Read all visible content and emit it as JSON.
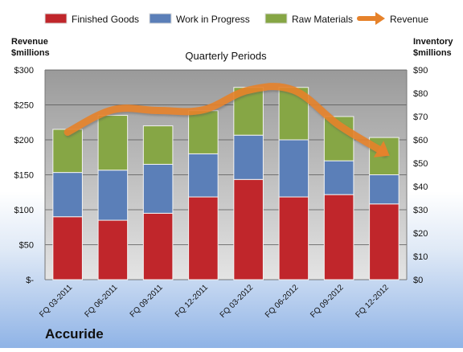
{
  "company": "Accuride",
  "chart_data": {
    "type": "bar",
    "subtitle": "Quarterly Periods",
    "categories": [
      "FQ 03-2011",
      "FQ 06-2011",
      "FQ 09-2011",
      "FQ 12-2011",
      "FQ 03-2012",
      "FQ 06-2012",
      "FQ 09-2012",
      "FQ 12-2012"
    ],
    "stacked": true,
    "series": [
      {
        "name": "Finished Goods",
        "axis": "right",
        "color": "#c0262b",
        "values": [
          27,
          25.5,
          28.5,
          35.5,
          43,
          35.5,
          36.5,
          32.5
        ]
      },
      {
        "name": "Work in Progress",
        "axis": "right",
        "color": "#5b7fb8",
        "values": [
          19,
          21.5,
          21,
          18.5,
          19,
          24.5,
          14.5,
          12.5
        ]
      },
      {
        "name": "Raw Materials",
        "axis": "right",
        "color": "#86a645",
        "values": [
          18.5,
          23.5,
          16.5,
          18.5,
          20.5,
          22.5,
          19,
          16
        ]
      }
    ],
    "line_series": {
      "name": "Revenue",
      "axis": "left",
      "color": "#e6822b",
      "values": [
        211,
        243,
        242,
        243,
        271,
        271,
        221,
        182
      ]
    },
    "left_axis": {
      "label_line1": "Revenue",
      "label_line2": "$millions",
      "min": 0,
      "max": 300,
      "step": 50,
      "ticks": [
        "$-",
        "$50",
        "$100",
        "$150",
        "$200",
        "$250",
        "$300"
      ]
    },
    "right_axis": {
      "label_line1": "Inventory",
      "label_line2": "$millions",
      "min": 0,
      "max": 90,
      "step": 10,
      "ticks": [
        "$0",
        "$10",
        "$20",
        "$30",
        "$40",
        "$50",
        "$60",
        "$70",
        "$80",
        "$90"
      ]
    },
    "grid": true,
    "legend_position": "top"
  }
}
